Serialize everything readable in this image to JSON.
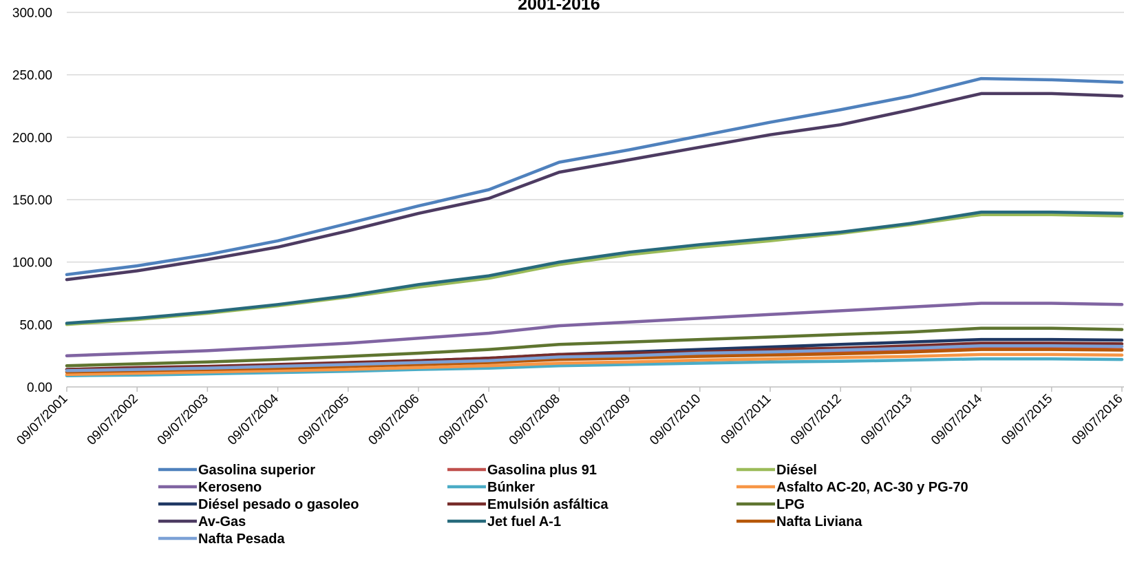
{
  "chart_data": {
    "type": "line",
    "title": "2001-2016",
    "xlabel": "",
    "ylabel": "",
    "ylim": [
      0,
      300
    ],
    "yticks": [
      "0.00",
      "50.00",
      "100.00",
      "150.00",
      "200.00",
      "250.00",
      "300.00"
    ],
    "x": [
      "09/07/2001",
      "09/07/2002",
      "09/07/2003",
      "09/07/2004",
      "09/07/2005",
      "09/07/2006",
      "09/07/2007",
      "09/07/2008",
      "09/07/2009",
      "09/07/2010",
      "09/07/2011",
      "09/07/2012",
      "09/07/2013",
      "09/07/2014",
      "09/07/2015",
      "09/07/2016"
    ],
    "grid": true,
    "legend_position": "bottom",
    "series": [
      {
        "name": "Gasolina superior",
        "color": "#4f81bd",
        "values": [
          90,
          97,
          106,
          117,
          131,
          145,
          158,
          180,
          190,
          201,
          212,
          222,
          233,
          247,
          246,
          244
        ]
      },
      {
        "name": "Gasolina plus 91",
        "color": "#c0504d",
        "values": [
          12,
          13,
          14,
          15.5,
          17,
          18.5,
          20,
          23,
          24,
          25.5,
          26.5,
          27.5,
          29,
          31,
          31,
          30
        ]
      },
      {
        "name": "Diésel",
        "color": "#9bbb59",
        "values": [
          50,
          54,
          59,
          65,
          72,
          80,
          87,
          98,
          106,
          112,
          117,
          123,
          130,
          138,
          138,
          137
        ]
      },
      {
        "name": "Keroseno",
        "color": "#8064a2",
        "values": [
          25,
          27,
          29,
          32,
          35,
          39,
          43,
          49,
          52,
          55,
          58,
          61,
          64,
          67,
          67,
          66
        ]
      },
      {
        "name": "Búnker",
        "color": "#4bacc6",
        "values": [
          9,
          9.5,
          10.5,
          11.5,
          12.5,
          14,
          15,
          17,
          18,
          19,
          20,
          20.5,
          21.5,
          22.5,
          22.5,
          22
        ]
      },
      {
        "name": "Asfalto AC-20, AC-30 y PG-70",
        "color": "#f79646",
        "values": [
          10,
          11,
          12,
          13,
          14,
          15.5,
          17,
          19,
          20,
          21.5,
          22.5,
          23.5,
          24.5,
          26,
          26,
          25.5
        ]
      },
      {
        "name": "Diésel pesado o gasoleo",
        "color": "#1f3864",
        "values": [
          14,
          15,
          16,
          17.5,
          19,
          21,
          23,
          26,
          28,
          30,
          32,
          34,
          36,
          38,
          38,
          37.5
        ]
      },
      {
        "name": "Emulsión asfáltica",
        "color": "#772c2a",
        "values": [
          14,
          15.5,
          16.5,
          18,
          19.5,
          21,
          23,
          26,
          27,
          28,
          30,
          31,
          33,
          35,
          35,
          34.5
        ]
      },
      {
        "name": "LPG",
        "color": "#5f7530",
        "values": [
          17,
          18.5,
          20,
          22,
          24.5,
          27,
          30,
          34,
          36,
          38,
          40,
          42,
          44,
          47,
          47,
          46
        ]
      },
      {
        "name": "Av-Gas",
        "color": "#4d3b62",
        "values": [
          86,
          93,
          102,
          112,
          125,
          139,
          151,
          172,
          182,
          192,
          202,
          210,
          222,
          235,
          235,
          233
        ]
      },
      {
        "name": "Jet fuel A-1",
        "color": "#276a7c",
        "values": [
          51,
          55,
          60,
          66,
          73,
          82,
          89,
          100,
          108,
          114,
          119,
          124,
          131,
          140,
          140,
          139
        ]
      },
      {
        "name": "Nafta Liviana",
        "color": "#b65708",
        "values": [
          12,
          13,
          14,
          15,
          16.5,
          18,
          19.5,
          22,
          23,
          24.5,
          25.5,
          26.5,
          28,
          30,
          30,
          29.5
        ]
      },
      {
        "name": "Nafta Pesada",
        "color": "#7ca1d6",
        "values": [
          13,
          14,
          15,
          16.5,
          18,
          19.5,
          21,
          24,
          25,
          27,
          28,
          29.5,
          31,
          33,
          33,
          32.5
        ]
      }
    ]
  }
}
